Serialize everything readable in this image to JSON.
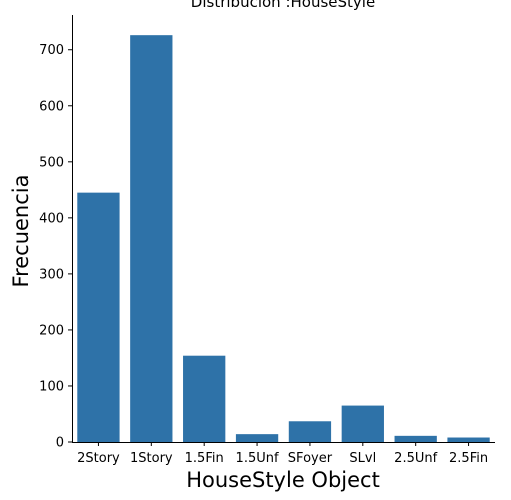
{
  "chart_data": {
    "type": "bar",
    "title": "Distribución :HouseStyle",
    "xlabel": "HouseStyle Object",
    "ylabel": "Frecuencia",
    "categories": [
      "2Story",
      "1Story",
      "1.5Fin",
      "1.5Unf",
      "SFoyer",
      "SLvl",
      "2.5Unf",
      "2.5Fin"
    ],
    "values": [
      445,
      726,
      154,
      14,
      37,
      65,
      11,
      8
    ],
    "ylim": [
      0,
      762
    ],
    "yticks": [
      0,
      100,
      200,
      300,
      400,
      500,
      600,
      700
    ],
    "bar_color": "#2e72a8",
    "grid": false,
    "legend": "none"
  }
}
